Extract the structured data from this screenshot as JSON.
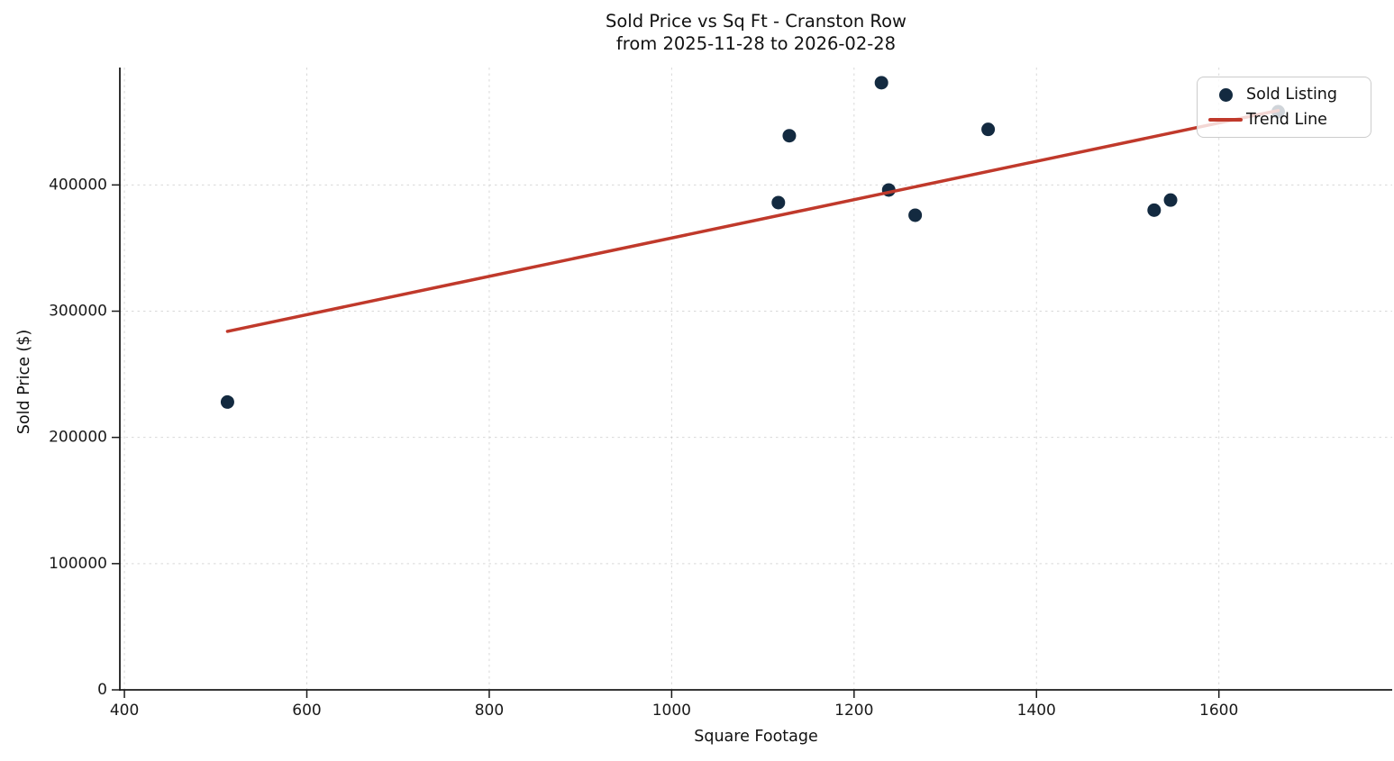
{
  "chart_data": {
    "type": "scatter",
    "title_line1": "Sold Price vs Sq Ft - Cranston Row",
    "title_line2": "from 2025-11-28 to 2026-02-28",
    "xlabel": "Square Footage",
    "ylabel": "Sold Price ($)",
    "xlim": [
      395,
      1790
    ],
    "ylim": [
      0,
      493000
    ],
    "xticks": [
      400,
      600,
      800,
      1000,
      1200,
      1400,
      1600
    ],
    "yticks": [
      0,
      100000,
      200000,
      300000,
      400000
    ],
    "grid": true,
    "legend_position": "upper right",
    "series": [
      {
        "name": "Sold Listing",
        "kind": "scatter",
        "color": "#132a40",
        "points": [
          {
            "sqft": 513,
            "price": 228000
          },
          {
            "sqft": 1117,
            "price": 386000
          },
          {
            "sqft": 1129,
            "price": 439000
          },
          {
            "sqft": 1230,
            "price": 481000
          },
          {
            "sqft": 1238,
            "price": 396000
          },
          {
            "sqft": 1267,
            "price": 376000
          },
          {
            "sqft": 1347,
            "price": 444000
          },
          {
            "sqft": 1529,
            "price": 380000
          },
          {
            "sqft": 1547,
            "price": 388000
          },
          {
            "sqft": 1665,
            "price": 458000
          }
        ]
      },
      {
        "name": "Trend Line",
        "kind": "line",
        "color": "#c0392b",
        "points": [
          {
            "sqft": 513,
            "price": 284000
          },
          {
            "sqft": 1665,
            "price": 459000
          }
        ]
      }
    ],
    "legend": [
      {
        "label": "Sold Listing",
        "marker": "dot",
        "color": "#132a40"
      },
      {
        "label": "Trend Line",
        "marker": "line",
        "color": "#c0392b"
      }
    ]
  },
  "colors": {
    "scatter": "#132a40",
    "trend": "#c0392b",
    "spine": "#1a1a1a",
    "grid": "#cccccc",
    "tick_text": "#1a1a1a",
    "background": "#ffffff"
  }
}
